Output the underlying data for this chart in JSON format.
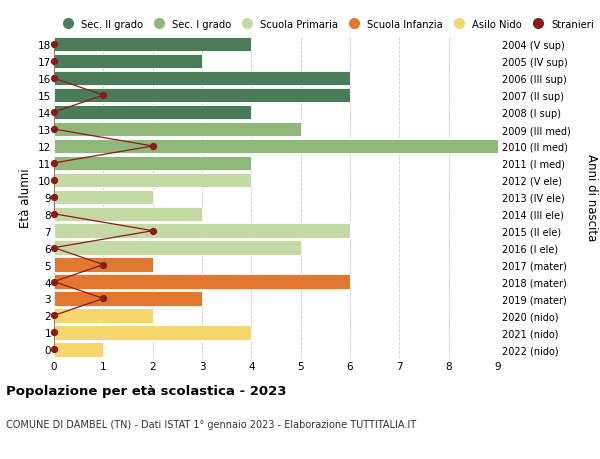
{
  "ages": [
    18,
    17,
    16,
    15,
    14,
    13,
    12,
    11,
    10,
    9,
    8,
    7,
    6,
    5,
    4,
    3,
    2,
    1,
    0
  ],
  "right_labels": [
    "2004 (V sup)",
    "2005 (IV sup)",
    "2006 (III sup)",
    "2007 (II sup)",
    "2008 (I sup)",
    "2009 (III med)",
    "2010 (II med)",
    "2011 (I med)",
    "2012 (V ele)",
    "2013 (IV ele)",
    "2014 (III ele)",
    "2015 (II ele)",
    "2016 (I ele)",
    "2017 (mater)",
    "2018 (mater)",
    "2019 (mater)",
    "2020 (nido)",
    "2021 (nido)",
    "2022 (nido)"
  ],
  "bar_values": [
    4,
    3,
    6,
    6,
    4,
    5,
    9,
    4,
    4,
    2,
    3,
    6,
    5,
    2,
    6,
    3,
    2,
    4,
    1
  ],
  "bar_colors": [
    "#4a7c59",
    "#4a7c59",
    "#4a7c59",
    "#4a7c59",
    "#4a7c59",
    "#8fb87a",
    "#8fb87a",
    "#8fb87a",
    "#c5d9a4",
    "#c5d9a4",
    "#c5d9a4",
    "#c5d9a4",
    "#c5d9a4",
    "#e07830",
    "#e07830",
    "#e07830",
    "#f5d76e",
    "#f5d76e",
    "#f5d76e"
  ],
  "stranieri_values": [
    0,
    0,
    0,
    1,
    0,
    0,
    2,
    0,
    0,
    0,
    0,
    2,
    0,
    1,
    0,
    1,
    0,
    0,
    0
  ],
  "stranieri_color": "#8b1a1a",
  "legend_labels": [
    "Sec. II grado",
    "Sec. I grado",
    "Scuola Primaria",
    "Scuola Infanzia",
    "Asilo Nido",
    "Stranieri"
  ],
  "legend_colors": [
    "#4a7c59",
    "#8fb87a",
    "#c5d9a4",
    "#e07830",
    "#f5d76e",
    "#8b1a1a"
  ],
  "title": "Popolazione per età scolastica - 2023",
  "subtitle": "COMUNE DI DAMBEL (TN) - Dati ISTAT 1° gennaio 2023 - Elaborazione TUTTITALIA.IT",
  "ylabel_left": "Età alunni",
  "ylabel_right": "Anni di nascita",
  "xlim": [
    0,
    9
  ],
  "background_color": "#ffffff",
  "grid_color": "#cccccc"
}
